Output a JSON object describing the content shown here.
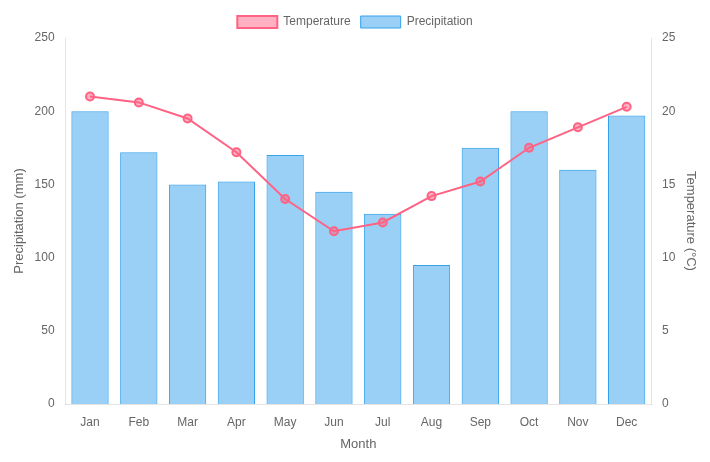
{
  "chart_data": {
    "type": "bar",
    "categories": [
      "Jan",
      "Feb",
      "Mar",
      "Apr",
      "May",
      "Jun",
      "Jul",
      "Aug",
      "Sep",
      "Oct",
      "Nov",
      "Dec"
    ],
    "series": [
      {
        "name": "Precipitation",
        "type": "bar",
        "values": [
          200,
          172,
          150,
          152,
          170,
          145,
          130,
          95,
          175,
          200,
          160,
          197
        ]
      },
      {
        "name": "Temperature",
        "type": "line",
        "axis": "y2",
        "marker": "circle",
        "line_style": "solid",
        "values": [
          21.0,
          20.6,
          19.5,
          17.2,
          14.0,
          11.8,
          12.4,
          14.2,
          15.2,
          17.5,
          18.9,
          20.3
        ]
      }
    ],
    "xlabel": "Month",
    "ylabel": "Precipitation (mm)",
    "y2label": "Temperature (°C)",
    "ylim": [
      0,
      250
    ],
    "yticks": [
      0,
      50,
      100,
      150,
      200,
      250
    ],
    "y2lim": [
      0,
      25
    ],
    "y2ticks": [
      0,
      5,
      10,
      15,
      20,
      25
    ],
    "grid": false,
    "legend": "top"
  }
}
